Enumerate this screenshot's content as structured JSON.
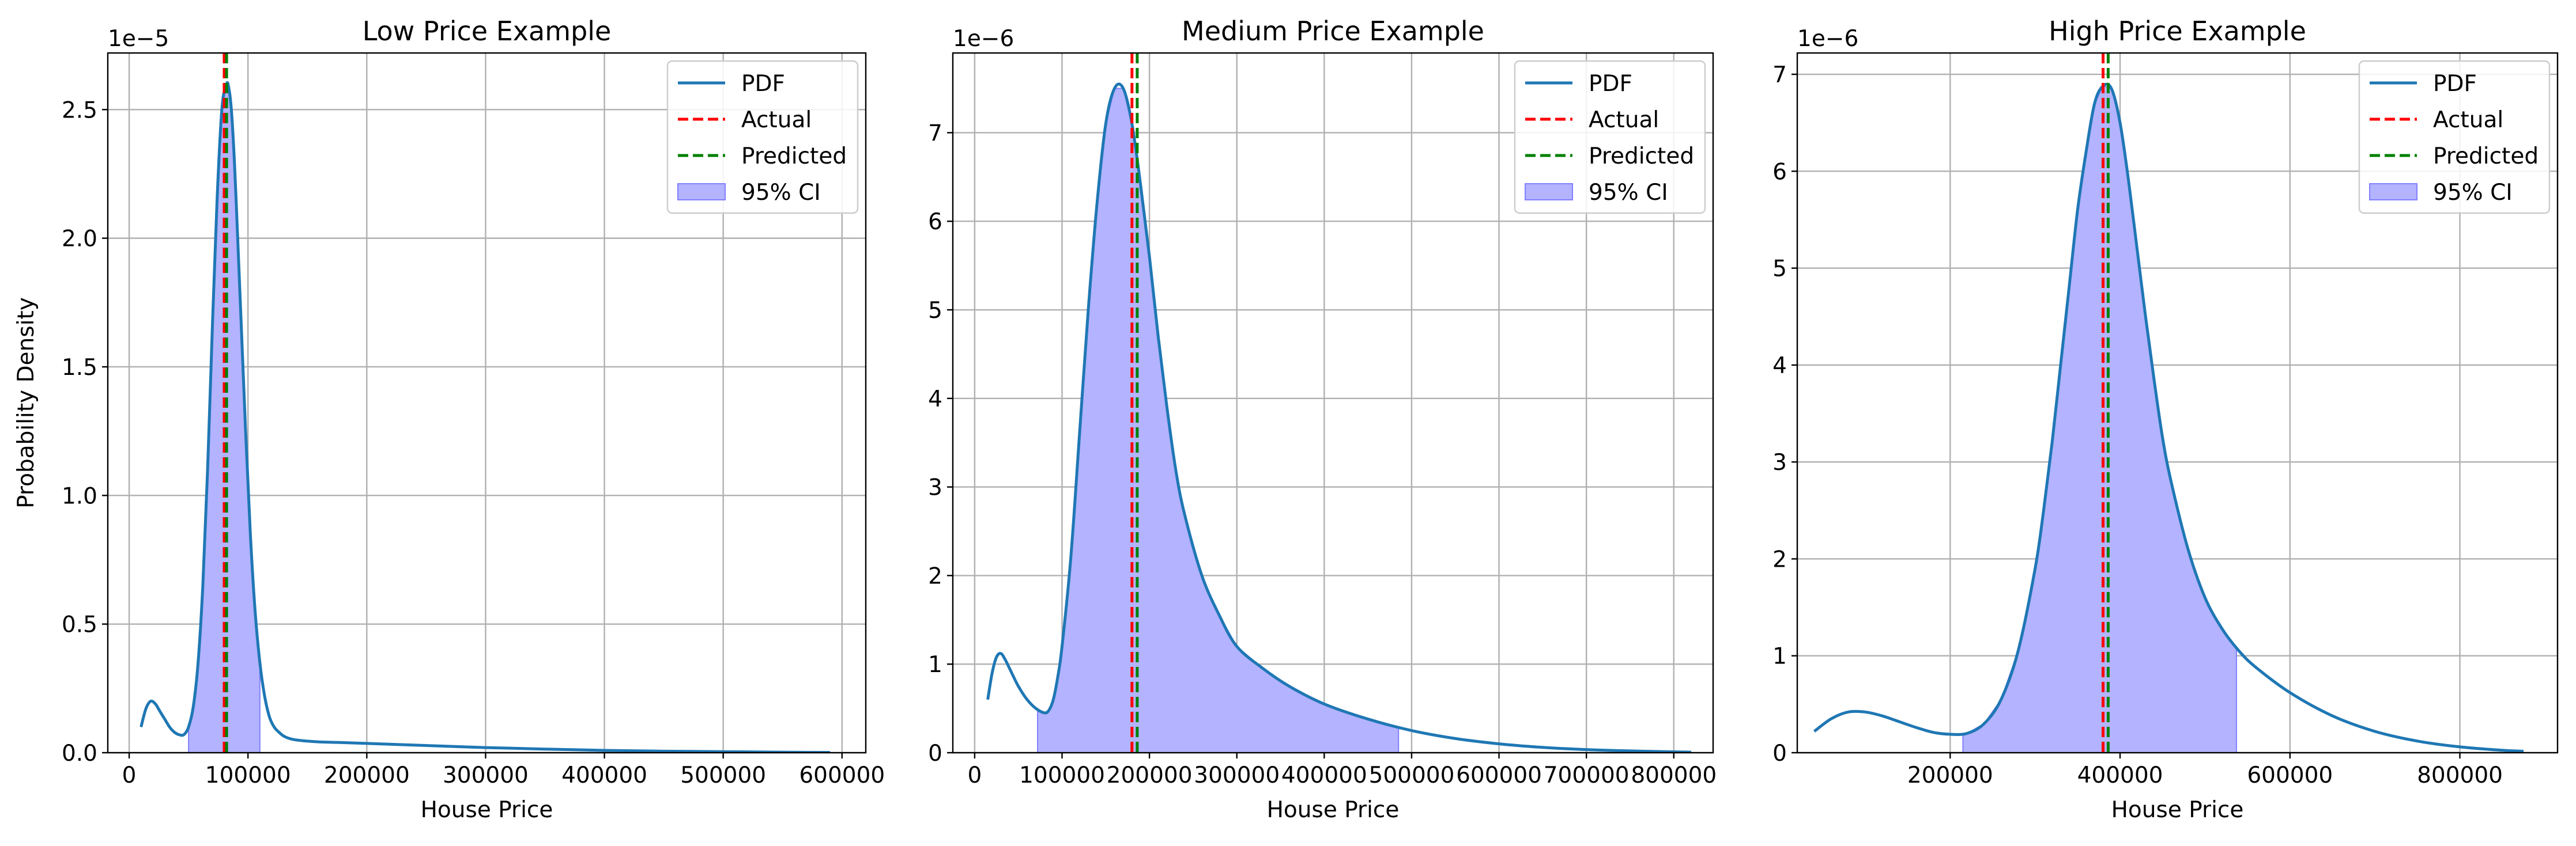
{
  "colors": {
    "pdf": "#1f77b4",
    "actual": "#ff0000",
    "predicted": "#008000",
    "ci_fill": "#b3b3ff",
    "ci_edge": "#8080ff",
    "grid": "#b0b0b0",
    "axes": "#000000"
  },
  "legend": {
    "pdf": "PDF",
    "actual": "Actual",
    "predicted": "Predicted",
    "ci": "95% CI"
  },
  "chart_data": [
    {
      "type": "line",
      "title": "Low Price Example",
      "xlabel": "House Price",
      "ylabel": "Probability Density",
      "offset_text": "1e−5",
      "scale": 1e-05,
      "xlim": [
        -18000,
        620000
      ],
      "ylim": [
        0,
        2.72
      ],
      "xticks": [
        0,
        100000,
        200000,
        300000,
        400000,
        500000,
        600000
      ],
      "xtick_labels": [
        "0",
        "100000",
        "200000",
        "300000",
        "400000",
        "500000",
        "600000"
      ],
      "yticks": [
        0,
        0.5,
        1.0,
        1.5,
        2.0,
        2.5
      ],
      "ytick_labels": [
        "0.0",
        "0.5",
        "1.0",
        "1.5",
        "2.0",
        "2.5"
      ],
      "grid": true,
      "legend_position": "top-right",
      "actual": 80000,
      "predicted": 82000,
      "ci": [
        50000,
        110000
      ],
      "series": [
        {
          "name": "PDF",
          "x": [
            10000,
            14000,
            18000,
            22000,
            26000,
            30000,
            34000,
            38000,
            42000,
            46000,
            50000,
            54000,
            58000,
            62000,
            66000,
            70000,
            74000,
            78000,
            82000,
            84000,
            86000,
            88000,
            90000,
            94000,
            98000,
            102000,
            106000,
            110000,
            114000,
            118000,
            122000,
            126000,
            130000,
            135000,
            140000,
            150000,
            160000,
            175000,
            200000,
            250000,
            300000,
            350000,
            400000,
            450000,
            500000,
            550000,
            590000
          ],
          "y": [
            0.1,
            0.17,
            0.2,
            0.19,
            0.16,
            0.13,
            0.1,
            0.08,
            0.07,
            0.07,
            0.1,
            0.18,
            0.35,
            0.65,
            1.1,
            1.65,
            2.15,
            2.5,
            2.6,
            2.58,
            2.5,
            2.35,
            2.15,
            1.7,
            1.25,
            0.85,
            0.55,
            0.35,
            0.22,
            0.14,
            0.1,
            0.08,
            0.065,
            0.055,
            0.05,
            0.045,
            0.042,
            0.04,
            0.036,
            0.028,
            0.02,
            0.014,
            0.009,
            0.006,
            0.004,
            0.002,
            0.001
          ]
        }
      ]
    },
    {
      "type": "line",
      "title": "Medium Price Example",
      "xlabel": "House Price",
      "ylabel": "",
      "offset_text": "1e−6",
      "scale": 1e-06,
      "xlim": [
        -25000,
        845000
      ],
      "ylim": [
        0,
        7.9
      ],
      "xticks": [
        0,
        100000,
        200000,
        300000,
        400000,
        500000,
        600000,
        700000,
        800000
      ],
      "xtick_labels": [
        "0",
        "100000",
        "200000",
        "300000",
        "400000",
        "500000",
        "600000",
        "700000",
        "800000"
      ],
      "yticks": [
        0,
        1,
        2,
        3,
        4,
        5,
        6,
        7
      ],
      "ytick_labels": [
        "0",
        "1",
        "2",
        "3",
        "4",
        "5",
        "6",
        "7"
      ],
      "grid": true,
      "legend_position": "top-right",
      "actual": 180000,
      "predicted": 186000,
      "ci": [
        72000,
        485000
      ],
      "series": [
        {
          "name": "PDF",
          "x": [
            15000,
            20000,
            25000,
            30000,
            35000,
            40000,
            50000,
            60000,
            70000,
            80000,
            85000,
            90000,
            95000,
            100000,
            110000,
            120000,
            130000,
            140000,
            150000,
            160000,
            170000,
            180000,
            190000,
            200000,
            210000,
            220000,
            230000,
            240000,
            260000,
            280000,
            300000,
            330000,
            360000,
            400000,
            450000,
            500000,
            550000,
            600000,
            650000,
            700000,
            750000,
            800000,
            820000
          ],
          "y": [
            0.6,
            0.9,
            1.08,
            1.12,
            1.05,
            0.95,
            0.75,
            0.6,
            0.5,
            0.45,
            0.48,
            0.6,
            0.85,
            1.2,
            2.2,
            3.6,
            5.0,
            6.2,
            7.1,
            7.5,
            7.5,
            7.1,
            6.4,
            5.6,
            4.7,
            3.9,
            3.2,
            2.7,
            2.0,
            1.55,
            1.2,
            0.95,
            0.75,
            0.55,
            0.38,
            0.25,
            0.16,
            0.1,
            0.06,
            0.035,
            0.02,
            0.01,
            0.006
          ]
        }
      ]
    },
    {
      "type": "line",
      "title": "High Price Example",
      "xlabel": "House Price",
      "ylabel": "",
      "offset_text": "1e−6",
      "scale": 1e-06,
      "xlim": [
        20000,
        915000
      ],
      "ylim": [
        0,
        7.22
      ],
      "xticks": [
        200000,
        400000,
        600000,
        800000
      ],
      "xtick_labels": [
        "200000",
        "400000",
        "600000",
        "800000"
      ],
      "yticks": [
        0,
        1,
        2,
        3,
        4,
        5,
        6,
        7
      ],
      "ytick_labels": [
        "0",
        "1",
        "2",
        "3",
        "4",
        "5",
        "6",
        "7"
      ],
      "grid": true,
      "legend_position": "top-right",
      "actual": 380000,
      "predicted": 386000,
      "ci": [
        215000,
        537000
      ],
      "series": [
        {
          "name": "PDF",
          "x": [
            40000,
            60000,
            80000,
            100000,
            120000,
            140000,
            160000,
            180000,
            200000,
            220000,
            240000,
            260000,
            280000,
            300000,
            310000,
            320000,
            330000,
            340000,
            350000,
            360000,
            370000,
            380000,
            390000,
            400000,
            410000,
            420000,
            430000,
            440000,
            450000,
            460000,
            480000,
            500000,
            520000,
            540000,
            560000,
            600000,
            650000,
            700000,
            750000,
            800000,
            850000,
            875000
          ],
          "y": [
            0.22,
            0.35,
            0.42,
            0.42,
            0.38,
            0.32,
            0.26,
            0.21,
            0.19,
            0.2,
            0.3,
            0.55,
            1.05,
            1.9,
            2.5,
            3.2,
            4.0,
            4.8,
            5.6,
            6.2,
            6.7,
            6.88,
            6.85,
            6.5,
            5.9,
            5.2,
            4.5,
            3.85,
            3.25,
            2.8,
            2.1,
            1.6,
            1.28,
            1.05,
            0.88,
            0.62,
            0.38,
            0.22,
            0.12,
            0.06,
            0.025,
            0.015
          ]
        }
      ]
    }
  ]
}
